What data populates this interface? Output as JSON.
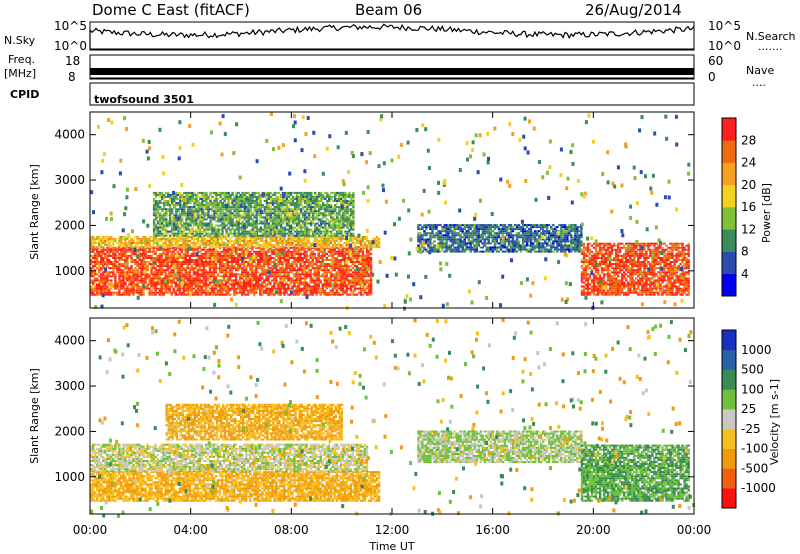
{
  "header": {
    "station": "Dome C East (fitACF)",
    "beam": "Beam 06",
    "date": "26/Aug/2014"
  },
  "nsky_panel": {
    "label": "N.Sky",
    "right_label": "N.Search",
    "right_dots": ".......",
    "left_ticks": [
      "10^5",
      "10^0"
    ],
    "right_ticks": [
      "10^5",
      "10^0"
    ]
  },
  "freq_panel": {
    "label_line1": "Freq.",
    "label_line2": "[MHz]",
    "right_label": "Nave",
    "right_dots": "....",
    "left_ticks": [
      "18",
      "8"
    ],
    "right_ticks": [
      "60",
      "0"
    ]
  },
  "cpid_panel": {
    "label": "CPID",
    "mode": "twofsound 3501"
  },
  "power_panel": {
    "ylabel": "Slant Range [km]",
    "yticks": [
      "4000",
      "3000",
      "2000",
      "1000"
    ],
    "colorbar_label": "Power [dB]",
    "colorbar_ticks": [
      "28",
      "24",
      "20",
      "16",
      "12",
      "8",
      "4"
    ],
    "colorbar_colors": [
      "#0000ee",
      "#2a4bb0",
      "#3a8c5a",
      "#7fc038",
      "#f4d020",
      "#f5a020",
      "#f06a10",
      "#ff2020"
    ]
  },
  "velocity_panel": {
    "ylabel": "Slant Range [km]",
    "yticks": [
      "4000",
      "3000",
      "2000",
      "1000"
    ],
    "colorbar_label": "Velocity [m s-1]",
    "colorbar_ticks": [
      "1000",
      "500",
      "100",
      "25",
      "-25",
      "-100",
      "-500",
      "-1000"
    ],
    "colorbar_colors": [
      "#ff1010",
      "#f06010",
      "#f09a10",
      "#f5c020",
      "#c8c8c0",
      "#6fc03a",
      "#3a8a55",
      "#2a60a8",
      "#1a30c0"
    ]
  },
  "xaxis": {
    "label": "Time UT",
    "ticks": [
      "00:00",
      "04:00",
      "08:00",
      "12:00",
      "16:00",
      "20:00",
      "00:00"
    ]
  },
  "chart_data": {
    "type": "heatmap",
    "x_range_hours": [
      0,
      24
    ],
    "y_range_km": [
      180,
      4500
    ],
    "x_label": "Time UT",
    "y_label": "Slant Range [km]",
    "power_regions": [
      {
        "t": [
          0.0,
          11.2
        ],
        "r": [
          450,
          1500
        ],
        "power_db": 28
      },
      {
        "t": [
          0.0,
          11.5
        ],
        "r": [
          1500,
          1750
        ],
        "power_db": 20
      },
      {
        "t": [
          2.5,
          10.5
        ],
        "r": [
          1750,
          2700
        ],
        "power_db": 12
      },
      {
        "t": [
          13.0,
          19.5
        ],
        "r": [
          1400,
          2000
        ],
        "power_db": 8
      },
      {
        "t": [
          19.5,
          23.8
        ],
        "r": [
          450,
          1600
        ],
        "power_db": 28
      }
    ],
    "velocity_regions": [
      {
        "t": [
          0.0,
          11.5
        ],
        "r": [
          450,
          1100
        ],
        "velocity_ms": -100
      },
      {
        "t": [
          0.0,
          11.0
        ],
        "r": [
          1100,
          1700
        ],
        "velocity_ms": 0
      },
      {
        "t": [
          3.0,
          10.0
        ],
        "r": [
          1800,
          2600
        ],
        "velocity_ms": -100
      },
      {
        "t": [
          13.0,
          19.5
        ],
        "r": [
          1300,
          2000
        ],
        "velocity_ms": 25
      },
      {
        "t": [
          19.5,
          23.8
        ],
        "r": [
          450,
          1700
        ],
        "velocity_ms": 100
      }
    ]
  }
}
